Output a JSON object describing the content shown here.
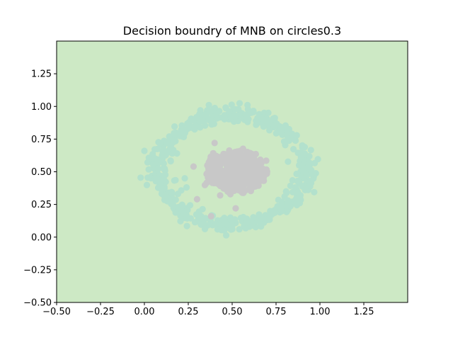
{
  "chart_data": {
    "type": "scatter",
    "title": "Decision boundry of MNB on circles0.3",
    "xlabel": "",
    "ylabel": "",
    "xlim": [
      -0.5,
      1.5
    ],
    "ylim": [
      -0.5,
      1.5
    ],
    "x_ticks": [
      -0.5,
      -0.25,
      0.0,
      0.25,
      0.5,
      0.75,
      1.0,
      1.25
    ],
    "y_ticks": [
      -0.5,
      -0.25,
      0.0,
      0.25,
      0.5,
      0.75,
      1.0,
      1.25
    ],
    "x_tick_labels": [
      "−0.50",
      "−0.25",
      "0.00",
      "0.25",
      "0.50",
      "0.75",
      "1.00",
      "1.25"
    ],
    "y_tick_labels": [
      "−0.50",
      "−0.25",
      "0.00",
      "0.25",
      "0.50",
      "0.75",
      "1.00",
      "1.25"
    ],
    "grid": false,
    "background_region": {
      "class": 1,
      "color": "#cde9c5"
    },
    "series": [
      {
        "class": 1,
        "color": "#b3e1cd",
        "marker": "circle",
        "shape": "ring",
        "center": [
          0.5,
          0.52
        ],
        "radius_x": 0.42,
        "radius_y": 0.42,
        "spread": 0.06,
        "approx_points": 520
      },
      {
        "class": 0,
        "color": "#c8c8c8",
        "marker": "circle",
        "shape": "disk",
        "center": [
          0.52,
          0.5
        ],
        "radius_x": 0.17,
        "radius_y": 0.15,
        "approx_points": 480
      }
    ],
    "outlier_points": [
      {
        "class": 1,
        "x": 0.0,
        "y": 0.66
      },
      {
        "class": 1,
        "x": 0.23,
        "y": 0.45
      },
      {
        "class": 1,
        "x": 0.24,
        "y": 0.38
      },
      {
        "class": 0,
        "x": 0.28,
        "y": 0.54
      },
      {
        "class": 0,
        "x": 0.4,
        "y": 0.72
      },
      {
        "class": 0,
        "x": 0.3,
        "y": 0.29
      },
      {
        "class": 0,
        "x": 0.38,
        "y": 0.16
      },
      {
        "class": 0,
        "x": 0.52,
        "y": 0.22
      }
    ]
  }
}
